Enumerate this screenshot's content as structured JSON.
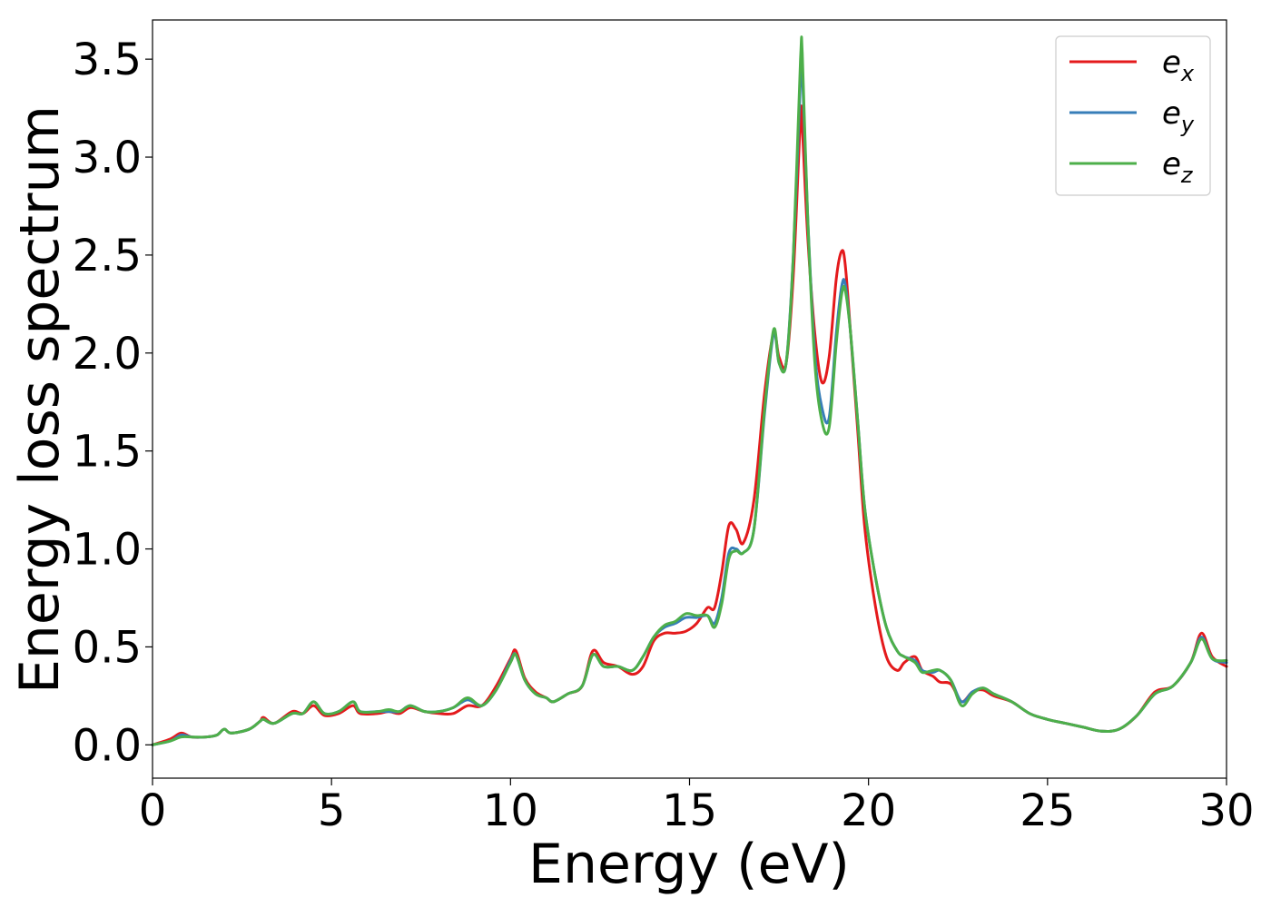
{
  "chart_data": {
    "type": "line",
    "title": "",
    "xlabel": "Energy (eV)",
    "ylabel": "Energy loss spectrum",
    "xlim": [
      0,
      30
    ],
    "ylim": [
      -0.17,
      3.7
    ],
    "xticks": [
      0,
      5,
      10,
      15,
      20,
      25,
      30
    ],
    "xtick_labels": [
      "0",
      "5",
      "10",
      "15",
      "20",
      "25",
      "30"
    ],
    "yticks": [
      0.0,
      0.5,
      1.0,
      1.5,
      2.0,
      2.5,
      3.0,
      3.5
    ],
    "ytick_labels": [
      "0.0",
      "0.5",
      "1.0",
      "1.5",
      "2.0",
      "2.5",
      "3.0",
      "3.5"
    ],
    "grid": false,
    "legend_position": "top-right",
    "series": [
      {
        "name": "e_x",
        "label_base": "e",
        "label_sub": "x",
        "color": "#e41a1c",
        "x": [
          0,
          0.5,
          0.8,
          1.1,
          1.5,
          1.8,
          2.0,
          2.2,
          2.7,
          3.0,
          3.1,
          3.4,
          3.9,
          4.2,
          4.5,
          4.8,
          5.2,
          5.6,
          5.8,
          6.3,
          6.6,
          6.9,
          7.2,
          7.6,
          8.0,
          8.4,
          8.8,
          9.2,
          9.6,
          10.0,
          10.15,
          10.4,
          10.7,
          11.0,
          11.2,
          11.6,
          12.0,
          12.3,
          12.6,
          13.0,
          13.4,
          13.7,
          14.0,
          14.3,
          14.6,
          14.9,
          15.2,
          15.5,
          15.7,
          15.9,
          16.1,
          16.3,
          16.5,
          16.8,
          17.1,
          17.35,
          17.5,
          17.7,
          17.9,
          18.1,
          18.15,
          18.3,
          18.5,
          18.7,
          18.9,
          19.1,
          19.25,
          19.35,
          19.5,
          19.7,
          19.9,
          20.2,
          20.5,
          20.8,
          21.0,
          21.3,
          21.5,
          21.8,
          22.0,
          22.3,
          22.6,
          22.9,
          23.2,
          23.5,
          24.0,
          24.5,
          25.0,
          25.5,
          26.0,
          26.5,
          27.0,
          27.5,
          28.0,
          28.5,
          29.0,
          29.3,
          29.6,
          30.0
        ],
        "y": [
          0.0,
          0.03,
          0.06,
          0.04,
          0.04,
          0.05,
          0.08,
          0.06,
          0.08,
          0.12,
          0.14,
          0.11,
          0.17,
          0.16,
          0.2,
          0.15,
          0.16,
          0.2,
          0.16,
          0.16,
          0.17,
          0.16,
          0.19,
          0.17,
          0.16,
          0.16,
          0.2,
          0.2,
          0.3,
          0.44,
          0.48,
          0.34,
          0.27,
          0.24,
          0.22,
          0.26,
          0.3,
          0.48,
          0.42,
          0.4,
          0.36,
          0.4,
          0.53,
          0.57,
          0.57,
          0.58,
          0.62,
          0.7,
          0.7,
          0.88,
          1.12,
          1.1,
          1.03,
          1.25,
          1.8,
          2.1,
          1.98,
          1.95,
          2.4,
          3.2,
          3.15,
          2.6,
          2.1,
          1.85,
          1.98,
          2.38,
          2.52,
          2.45,
          2.1,
          1.6,
          1.1,
          0.7,
          0.45,
          0.38,
          0.42,
          0.45,
          0.38,
          0.35,
          0.32,
          0.31,
          0.22,
          0.27,
          0.28,
          0.25,
          0.22,
          0.16,
          0.13,
          0.11,
          0.09,
          0.07,
          0.08,
          0.15,
          0.27,
          0.3,
          0.42,
          0.57,
          0.45,
          0.4
        ]
      },
      {
        "name": "e_y",
        "label_base": "e",
        "label_sub": "y",
        "color": "#377eb8",
        "x": [
          0,
          0.5,
          0.8,
          1.1,
          1.5,
          1.8,
          2.0,
          2.2,
          2.7,
          3.0,
          3.1,
          3.4,
          3.9,
          4.2,
          4.5,
          4.8,
          5.2,
          5.6,
          5.8,
          6.3,
          6.6,
          6.9,
          7.2,
          7.6,
          8.0,
          8.4,
          8.8,
          9.2,
          9.6,
          10.0,
          10.15,
          10.4,
          10.7,
          11.0,
          11.2,
          11.6,
          12.0,
          12.3,
          12.6,
          13.0,
          13.4,
          13.7,
          14.0,
          14.3,
          14.6,
          14.9,
          15.2,
          15.5,
          15.7,
          15.9,
          16.1,
          16.3,
          16.5,
          16.8,
          17.1,
          17.35,
          17.5,
          17.7,
          17.9,
          18.1,
          18.15,
          18.3,
          18.5,
          18.7,
          18.9,
          19.1,
          19.25,
          19.35,
          19.5,
          19.7,
          19.9,
          20.2,
          20.5,
          20.8,
          21.0,
          21.3,
          21.5,
          21.8,
          22.0,
          22.3,
          22.6,
          22.9,
          23.2,
          23.5,
          24.0,
          24.5,
          25.0,
          25.5,
          26.0,
          26.5,
          27.0,
          27.5,
          28.0,
          28.5,
          29.0,
          29.3,
          29.6,
          30.0
        ],
        "y": [
          0.0,
          0.02,
          0.05,
          0.04,
          0.04,
          0.05,
          0.08,
          0.06,
          0.08,
          0.12,
          0.13,
          0.11,
          0.16,
          0.16,
          0.22,
          0.16,
          0.17,
          0.22,
          0.17,
          0.17,
          0.17,
          0.17,
          0.2,
          0.17,
          0.17,
          0.19,
          0.23,
          0.2,
          0.28,
          0.43,
          0.46,
          0.33,
          0.26,
          0.24,
          0.22,
          0.26,
          0.3,
          0.46,
          0.4,
          0.4,
          0.38,
          0.45,
          0.55,
          0.6,
          0.62,
          0.65,
          0.65,
          0.66,
          0.62,
          0.75,
          0.98,
          1.0,
          0.98,
          1.1,
          1.7,
          2.1,
          1.95,
          1.95,
          2.5,
          3.4,
          3.45,
          2.7,
          2.0,
          1.72,
          1.67,
          2.1,
          2.34,
          2.35,
          2.1,
          1.65,
          1.2,
          0.85,
          0.6,
          0.48,
          0.45,
          0.43,
          0.38,
          0.37,
          0.38,
          0.33,
          0.22,
          0.27,
          0.29,
          0.26,
          0.22,
          0.16,
          0.13,
          0.11,
          0.09,
          0.07,
          0.08,
          0.15,
          0.26,
          0.3,
          0.42,
          0.55,
          0.44,
          0.42
        ]
      },
      {
        "name": "e_z",
        "label_base": "e",
        "label_sub": "z",
        "color": "#4daf4a",
        "x": [
          0,
          0.5,
          0.8,
          1.1,
          1.5,
          1.8,
          2.0,
          2.2,
          2.7,
          3.0,
          3.1,
          3.4,
          3.9,
          4.2,
          4.5,
          4.8,
          5.2,
          5.6,
          5.8,
          6.3,
          6.6,
          6.9,
          7.2,
          7.6,
          8.0,
          8.4,
          8.8,
          9.2,
          9.6,
          10.0,
          10.15,
          10.4,
          10.7,
          11.0,
          11.2,
          11.6,
          12.0,
          12.3,
          12.6,
          13.0,
          13.4,
          13.7,
          14.0,
          14.3,
          14.6,
          14.9,
          15.2,
          15.5,
          15.7,
          15.9,
          16.1,
          16.3,
          16.5,
          16.8,
          17.1,
          17.35,
          17.5,
          17.7,
          17.9,
          18.1,
          18.15,
          18.3,
          18.5,
          18.7,
          18.9,
          19.1,
          19.25,
          19.35,
          19.5,
          19.7,
          19.9,
          20.2,
          20.5,
          20.8,
          21.0,
          21.3,
          21.5,
          21.8,
          22.0,
          22.3,
          22.6,
          22.9,
          23.2,
          23.5,
          24.0,
          24.5,
          25.0,
          25.5,
          26.0,
          26.5,
          27.0,
          27.5,
          28.0,
          28.5,
          29.0,
          29.3,
          29.6,
          30.0
        ],
        "y": [
          0.0,
          0.02,
          0.04,
          0.04,
          0.04,
          0.05,
          0.08,
          0.06,
          0.08,
          0.12,
          0.13,
          0.11,
          0.16,
          0.16,
          0.22,
          0.16,
          0.17,
          0.22,
          0.17,
          0.17,
          0.18,
          0.17,
          0.2,
          0.17,
          0.17,
          0.19,
          0.24,
          0.2,
          0.28,
          0.42,
          0.46,
          0.33,
          0.26,
          0.24,
          0.22,
          0.26,
          0.3,
          0.46,
          0.4,
          0.4,
          0.38,
          0.45,
          0.55,
          0.61,
          0.63,
          0.67,
          0.66,
          0.66,
          0.6,
          0.72,
          0.95,
          0.99,
          0.98,
          1.1,
          1.72,
          2.12,
          1.95,
          1.95,
          2.5,
          3.5,
          3.53,
          2.7,
          1.95,
          1.65,
          1.62,
          2.05,
          2.3,
          2.32,
          2.1,
          1.65,
          1.2,
          0.85,
          0.6,
          0.48,
          0.45,
          0.42,
          0.37,
          0.38,
          0.38,
          0.33,
          0.2,
          0.26,
          0.29,
          0.26,
          0.22,
          0.16,
          0.13,
          0.11,
          0.09,
          0.07,
          0.08,
          0.15,
          0.26,
          0.3,
          0.42,
          0.54,
          0.44,
          0.43
        ]
      }
    ]
  }
}
